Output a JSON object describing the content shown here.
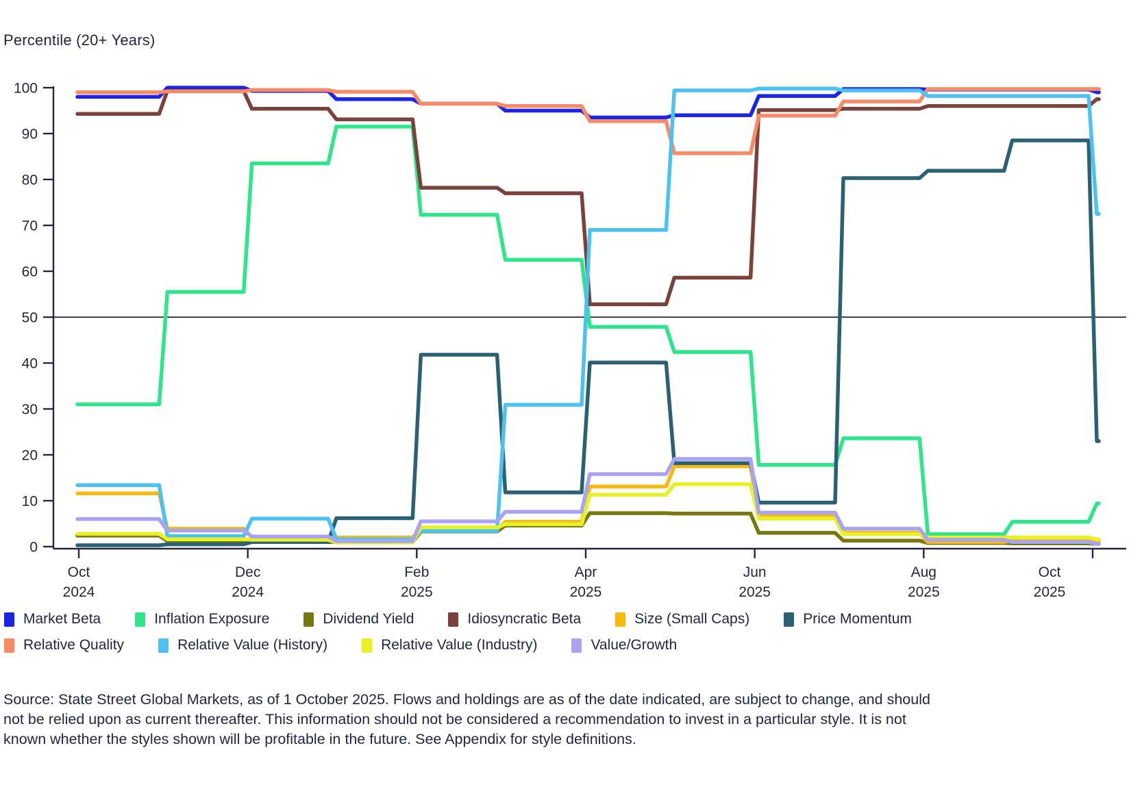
{
  "title": "Percentile (20+ Years)",
  "chart_data": {
    "type": "line",
    "subtype": "step-monthly",
    "title": "Percentile (20+ Years)",
    "xlabel": "",
    "ylabel": "Percentile (20+ Years)",
    "ylim": [
      0,
      100
    ],
    "ytick_step": 10,
    "reference_line_y": 50,
    "grid": "off",
    "legend_position": "bottom",
    "x_months": [
      "Oct 2024",
      "Nov 2024",
      "Dec 2024",
      "Jan 2025",
      "Feb 2025",
      "Mar 2025",
      "Apr 2025",
      "May 2025",
      "Jun 2025",
      "Jul 2025",
      "Aug 2025",
      "Sep 2025",
      "Oct 2025"
    ],
    "x_tick_labels": [
      {
        "line1": "Oct",
        "line2": "2024"
      },
      {
        "line1": "Dec",
        "line2": "2024"
      },
      {
        "line1": "Feb",
        "line2": "2025"
      },
      {
        "line1": "Apr",
        "line2": "2025"
      },
      {
        "line1": "Jun",
        "line2": "2025"
      },
      {
        "line1": "Aug",
        "line2": "2025"
      },
      {
        "line1": "Oct",
        "line2": "2025"
      }
    ],
    "series": [
      {
        "name": "Market Beta",
        "color": "#1c24e8",
        "values": [
          98,
          100,
          99.3,
          97.5,
          96.5,
          95,
          93.5,
          94,
          98.2,
          99.7,
          99.6,
          99.6,
          99
        ]
      },
      {
        "name": "Inflation Exposure",
        "color": "#2ee68a",
        "values": [
          31,
          55.5,
          83.5,
          91.5,
          72.3,
          62.5,
          47.9,
          42.4,
          17.8,
          23.6,
          2.7,
          5.4,
          9.4
        ]
      },
      {
        "name": "Dividend Yield",
        "color": "#77790f",
        "values": [
          2.4,
          1.2,
          1,
          1,
          3.3,
          4.6,
          7.3,
          7.2,
          3,
          1.3,
          0.8,
          0.7,
          0.6
        ]
      },
      {
        "name": "Idiosyncratic Beta",
        "color": "#7a423b",
        "values": [
          94.3,
          99.3,
          95.4,
          93.1,
          78.2,
          77,
          52.8,
          58.6,
          95.1,
          95.4,
          96,
          96,
          97.5
        ]
      },
      {
        "name": "Size (Small Caps)",
        "color": "#f7ba12",
        "values": [
          11.6,
          3.9,
          2.1,
          2,
          3.8,
          5.4,
          13.1,
          17.5,
          6.8,
          3,
          1,
          1.3,
          1.3
        ]
      },
      {
        "name": "Price Momentum",
        "color": "#2b6173",
        "values": [
          0.3,
          0.5,
          1,
          6.2,
          41.8,
          11.8,
          40.1,
          18.2,
          9.6,
          80.3,
          81.9,
          88.5,
          23
        ]
      },
      {
        "name": "Relative Quality",
        "color": "#f88b66",
        "values": [
          99,
          99.2,
          99.5,
          99.1,
          96.5,
          96,
          92.7,
          85.7,
          93.9,
          97,
          99.7,
          99.7,
          99.7
        ]
      },
      {
        "name": "Relative Value (History)",
        "color": "#4cc2f1",
        "values": [
          13.4,
          2.3,
          6.1,
          1.6,
          3.4,
          30.9,
          69,
          99.4,
          99.8,
          99.4,
          98.2,
          98.2,
          72.5
        ]
      },
      {
        "name": "Relative Value (Industry)",
        "color": "#e9f126",
        "values": [
          2.8,
          1.6,
          1.5,
          0.9,
          4.2,
          4.9,
          11.3,
          13.6,
          6.1,
          2.7,
          2,
          2,
          1.6
        ]
      },
      {
        "name": "Value/Growth",
        "color": "#a9a3f3",
        "values": [
          6,
          3.5,
          2.2,
          1.2,
          5.5,
          7.6,
          15.8,
          19.1,
          7.4,
          3.9,
          1.5,
          1,
          0.6
        ]
      }
    ],
    "axis_color": "#23263f"
  },
  "legend": {
    "items": [
      "Market Beta",
      "Inflation Exposure",
      "Dividend Yield",
      "Idiosyncratic Beta",
      "Size (Small Caps)",
      "Price Momentum",
      "Relative Quality",
      "Relative Value (History)",
      "Relative Value (Industry)",
      "Value/Growth"
    ]
  },
  "source": {
    "lines": [
      "Source: State Street Global Markets, as of 1 October 2025. Flows and holdings are as of the date indicated, are subject to change, and should",
      "not be relied upon as current thereafter. This information should not be considered a recommendation to invest in a particular style. It is not",
      "known whether the styles shown will be profitable in the future. See Appendix for style definitions."
    ]
  }
}
